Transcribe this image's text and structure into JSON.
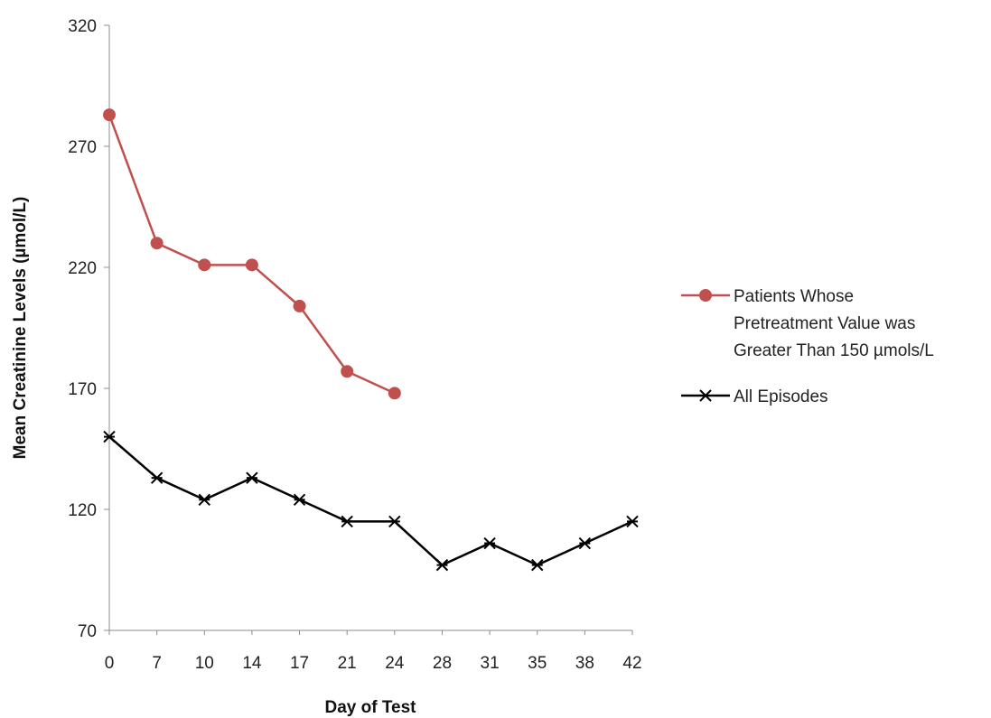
{
  "chart_data": {
    "type": "line",
    "title": "",
    "xlabel": "Day of Test",
    "ylabel": "Mean Creatinine Levels (µmol/L)",
    "categories": [
      "0",
      "7",
      "10",
      "14",
      "17",
      "21",
      "24",
      "28",
      "31",
      "35",
      "38",
      "42"
    ],
    "ylim": [
      70,
      320
    ],
    "yticks": [
      70,
      120,
      170,
      220,
      270,
      320
    ],
    "grid": false,
    "legend_position": "right",
    "series": [
      {
        "name": "Patients Whose Pretreatment Value was Greater Than 150 µmols/L",
        "legend_lines": [
          "Patients Whose",
          "Pretreatment Value was",
          "Greater Than 150 µmols/L"
        ],
        "color": "#c0504d",
        "marker": "circle",
        "values": [
          283,
          230,
          221,
          221,
          204,
          177,
          168,
          null,
          null,
          null,
          null,
          null
        ]
      },
      {
        "name": "All Episodes",
        "legend_lines": [
          "All Episodes"
        ],
        "color": "#000000",
        "marker": "asterisk",
        "values": [
          150,
          133,
          124,
          133,
          124,
          115,
          115,
          97,
          106,
          97,
          106,
          115
        ]
      }
    ]
  }
}
